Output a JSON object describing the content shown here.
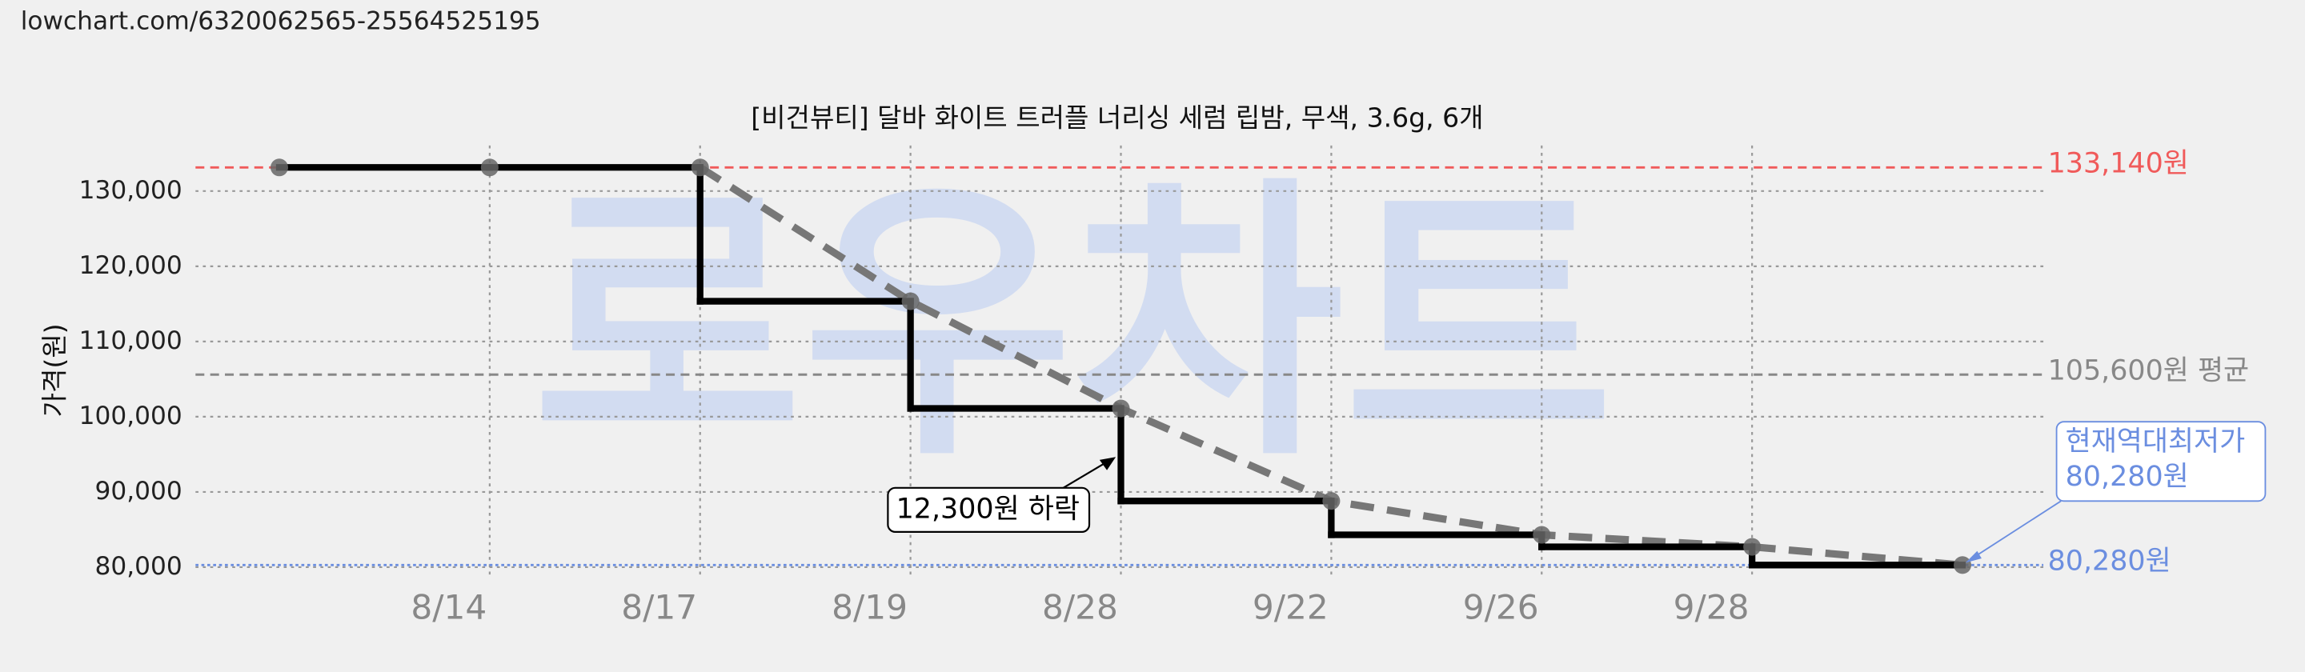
{
  "url": "lowchart.com/6320062565-25564525195",
  "chart_data": {
    "type": "step",
    "title": "[비건뷰티] 달바 화이트 트러플 너리싱 세럼 립밤, 무색, 3.6g, 6개",
    "watermark": "로우차트",
    "y_label": "가격(원)",
    "categories": [
      null,
      "8/14",
      "8/17",
      "8/19",
      "8/28",
      "9/22",
      "9/26",
      "9/28",
      null
    ],
    "series": [
      {
        "color": "#000000",
        "values": [
          133140,
          133140,
          133140,
          115350,
          101100,
          88800,
          84300,
          82700,
          80280
        ]
      }
    ],
    "trend_color": "#777777",
    "ylim": [
      79000,
      136000
    ],
    "yticks": [
      {
        "value": 80000,
        "label": "80,000"
      },
      {
        "value": 90000,
        "label": "90,000"
      },
      {
        "value": 100000,
        "label": "100,000"
      },
      {
        "value": 110000,
        "label": "110,000"
      },
      {
        "value": 120000,
        "label": "120,000"
      },
      {
        "value": 130000,
        "label": "130,000"
      }
    ],
    "grid": true,
    "hlines": [
      {
        "value": 133140,
        "label": "133,140원",
        "color": "#f05a5a",
        "style": "dashed"
      },
      {
        "value": 105600,
        "label": "105,600원 평균",
        "color": "#888888",
        "style": "dashed"
      },
      {
        "value": 80280,
        "label": "80,280원",
        "color": "#6b8ee0",
        "style": "dotted"
      }
    ],
    "annotations": [
      {
        "text": "12,300원 하락"
      },
      {
        "text": [
          "현재역대최저가",
          "80,280원"
        ],
        "color": "#6b8ee0"
      }
    ]
  }
}
